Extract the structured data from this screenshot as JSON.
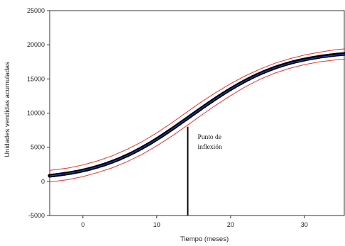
{
  "chart_data": {
    "type": "line",
    "xlabel": "Tiempo (meses)",
    "ylabel": "Unidades vendidas acumuladas",
    "xlim": [
      -4.5,
      35.5
    ],
    "ylim": [
      -5000,
      25000
    ],
    "x_ticks": [
      0,
      10,
      20,
      30
    ],
    "y_ticks": [
      -5000,
      0,
      5000,
      10000,
      15000,
      20000,
      25000
    ],
    "x_tick_labels": [
      "0",
      "10",
      "20",
      "30"
    ],
    "y_tick_labels": [
      "-5000",
      "0",
      "5000",
      "10000",
      "15000",
      "20000",
      "25000"
    ],
    "grid": false,
    "legend": false,
    "series": [
      {
        "role": "observed",
        "color": "#000000",
        "marker": "circle",
        "x": [
          -4.5,
          -4,
          -3.5,
          -3,
          -2.5,
          -2,
          -1.5,
          -1,
          -0.5,
          0,
          0.5,
          1,
          1.5,
          2,
          2.5,
          3,
          3.5,
          4,
          4.5,
          5,
          5.5,
          6,
          6.5,
          7,
          7.5,
          8,
          8.5,
          9,
          9.5,
          10,
          10.5,
          11,
          11.5,
          12,
          12.5,
          13,
          13.5,
          14,
          14.5,
          15,
          15.5,
          16,
          16.5,
          17,
          17.5,
          18,
          18.5,
          19,
          19.5,
          20,
          20.5,
          21,
          21.5,
          22,
          22.5,
          23,
          23.5,
          24,
          24.5,
          25,
          25.5,
          26,
          26.5,
          27,
          27.5,
          28,
          28.5,
          29,
          29.5,
          30,
          30.5,
          31,
          31.5,
          32,
          32.5,
          33,
          33.5,
          34,
          34.5,
          35,
          35.5
        ],
        "y": [
          820,
          880,
          950,
          1020,
          1100,
          1180,
          1270,
          1370,
          1470,
          1600,
          1720,
          1860,
          2010,
          2160,
          2330,
          2500,
          2690,
          2890,
          3100,
          3320,
          3560,
          3800,
          4060,
          4330,
          4610,
          4900,
          5210,
          5520,
          5850,
          6190,
          6530,
          6890,
          7250,
          7620,
          7990,
          8370,
          8750,
          9130,
          9510,
          9900,
          10280,
          10660,
          11040,
          11410,
          11780,
          12140,
          12490,
          12840,
          13180,
          13510,
          13830,
          14140,
          14440,
          14730,
          15010,
          15280,
          15540,
          15780,
          16010,
          16230,
          16440,
          16640,
          16830,
          17000,
          17170,
          17320,
          17460,
          17600,
          17720,
          17840,
          17950,
          18050,
          18140,
          18230,
          18310,
          18380,
          18450,
          18510,
          18570,
          18620,
          18670
        ]
      },
      {
        "role": "fitted",
        "color": "#1f3fbf",
        "x": [
          -4.5,
          -2,
          0,
          2,
          4,
          6,
          8,
          10,
          12,
          14,
          16,
          18,
          20,
          22,
          24,
          26,
          28,
          30,
          32,
          34,
          35.5
        ],
        "y": [
          800,
          1160,
          1570,
          2130,
          2860,
          3770,
          4870,
          6150,
          7580,
          9110,
          10660,
          12120,
          13500,
          14720,
          15780,
          16620,
          17300,
          17790,
          18180,
          18460,
          18640
        ]
      },
      {
        "role": "upper-band",
        "color": "#ee3333",
        "x": [
          -4.5,
          -2,
          0,
          2,
          4,
          6,
          8,
          10,
          12,
          14,
          16,
          18,
          20,
          22,
          24,
          26,
          28,
          30,
          32,
          34,
          35.5
        ],
        "y": [
          1600,
          1950,
          2400,
          3000,
          3750,
          4700,
          5800,
          7100,
          8550,
          10080,
          11600,
          13000,
          14300,
          15450,
          16450,
          17300,
          17950,
          18500,
          18900,
          19250,
          19400
        ]
      },
      {
        "role": "lower-band",
        "color": "#ee3333",
        "x": [
          -4.5,
          -2,
          0,
          2,
          4,
          6,
          8,
          10,
          12,
          14,
          16,
          18,
          20,
          22,
          24,
          26,
          28,
          30,
          32,
          34,
          35.5
        ],
        "y": [
          -100,
          250,
          700,
          1300,
          2000,
          2900,
          3950,
          5200,
          6600,
          8100,
          9650,
          11150,
          12550,
          13850,
          14950,
          15850,
          16550,
          17100,
          17500,
          17750,
          17900
        ]
      }
    ],
    "annotation": {
      "text_line1": "Punto de",
      "text_line2": "inflexión",
      "x": 14.2,
      "y": 8000
    }
  }
}
